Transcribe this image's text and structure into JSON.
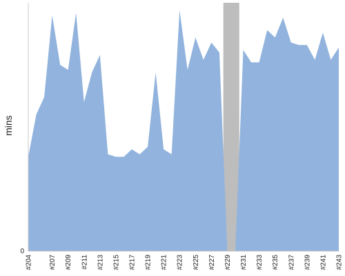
{
  "chart_data": {
    "type": "area",
    "ylabel": "mins",
    "xlabel": "",
    "x": [
      "#204",
      "#205",
      "#206",
      "#207",
      "#208",
      "#209",
      "#210",
      "#211",
      "#212",
      "#213",
      "#214",
      "#215",
      "#216",
      "#217",
      "#218",
      "#219",
      "#220",
      "#221",
      "#222",
      "#223",
      "#224",
      "#225",
      "#226",
      "#227",
      "#228",
      "#229",
      "#230",
      "#231",
      "#232",
      "#233",
      "#234",
      "#235",
      "#236",
      "#237",
      "#238",
      "#239",
      "#240",
      "#241",
      "#242",
      "#243"
    ],
    "x_tick_labels": [
      "#204",
      "#207",
      "#209",
      "#211",
      "#213",
      "#215",
      "#217",
      "#219",
      "#221",
      "#223",
      "#225",
      "#227",
      "#229",
      "#231",
      "#233",
      "#235",
      "#237",
      "#239",
      "#241",
      "#243"
    ],
    "values": [
      38,
      55,
      62,
      95,
      75,
      73,
      96,
      60,
      72,
      79,
      39,
      38,
      38,
      41,
      39,
      42,
      72,
      41,
      39,
      97,
      73,
      86,
      77,
      84,
      80,
      0,
      0,
      81,
      76,
      76,
      89,
      86,
      94,
      84,
      83,
      83,
      77,
      88,
      77,
      82
    ],
    "failed_builds": [
      "#229",
      "#230"
    ],
    "y_tick_labels": [
      "0"
    ],
    "ylim": [
      0,
      100
    ],
    "grid": false,
    "colors": {
      "area": "#91b3dd",
      "failed": "#bdbdbd",
      "axis": "#c8c8c8"
    }
  }
}
